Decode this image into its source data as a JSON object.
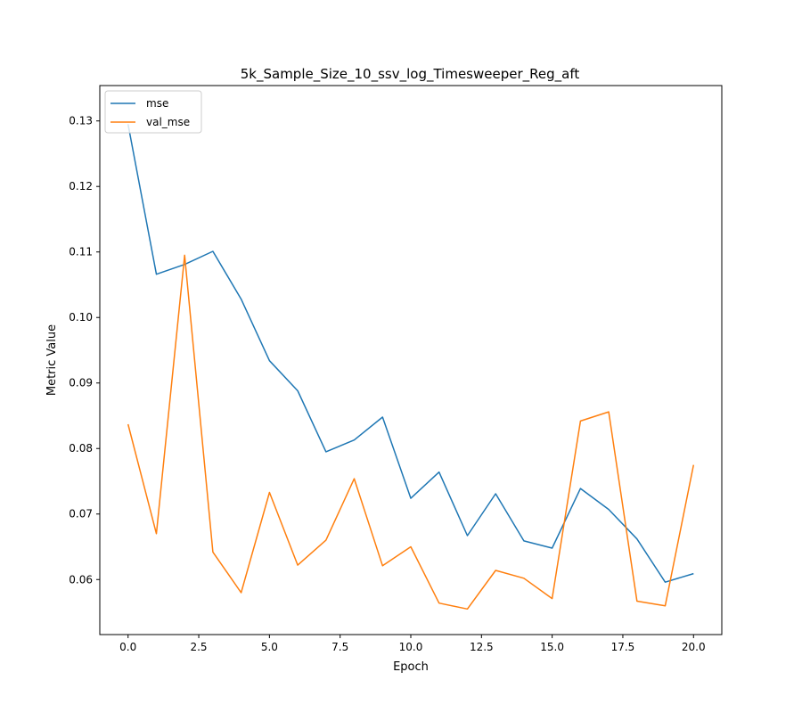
{
  "chart_data": {
    "type": "line",
    "title": "5k_Sample_Size_10_ssv_log_Timesweeper_Reg_aft",
    "xlabel": "Epoch",
    "ylabel": "Metric Value",
    "xlim": [
      -1.0,
      21.0
    ],
    "ylim": [
      0.0516,
      0.1354
    ],
    "xticks": [
      0.0,
      2.5,
      5.0,
      7.5,
      10.0,
      12.5,
      15.0,
      17.5,
      20.0
    ],
    "xtick_labels": [
      "0.0",
      "2.5",
      "5.0",
      "7.5",
      "10.0",
      "12.5",
      "15.0",
      "17.5",
      "20.0"
    ],
    "yticks": [
      0.06,
      0.07,
      0.08,
      0.09,
      0.1,
      0.11,
      0.12,
      0.13
    ],
    "ytick_labels": [
      "0.06",
      "0.07",
      "0.08",
      "0.09",
      "0.10",
      "0.11",
      "0.12",
      "0.13"
    ],
    "grid": false,
    "legend_position": "upper-left",
    "x": [
      0,
      1,
      2,
      3,
      4,
      5,
      6,
      7,
      8,
      9,
      10,
      11,
      12,
      13,
      14,
      15,
      16,
      17,
      18,
      19,
      20
    ],
    "series": [
      {
        "name": "mse",
        "color": "#1f77b4",
        "values": [
          0.1295,
          0.1066,
          0.1081,
          0.1101,
          0.1028,
          0.0934,
          0.0888,
          0.0795,
          0.0813,
          0.0848,
          0.0724,
          0.0764,
          0.0667,
          0.0731,
          0.0659,
          0.0648,
          0.0739,
          0.0707,
          0.0662,
          0.0596,
          0.0609
        ]
      },
      {
        "name": "val_mse",
        "color": "#ff7f0e",
        "values": [
          0.0837,
          0.067,
          0.1095,
          0.0642,
          0.058,
          0.0733,
          0.0622,
          0.066,
          0.0754,
          0.0621,
          0.065,
          0.0564,
          0.0555,
          0.0614,
          0.0602,
          0.0571,
          0.0842,
          0.0856,
          0.0567,
          0.056,
          0.0775
        ]
      }
    ]
  }
}
